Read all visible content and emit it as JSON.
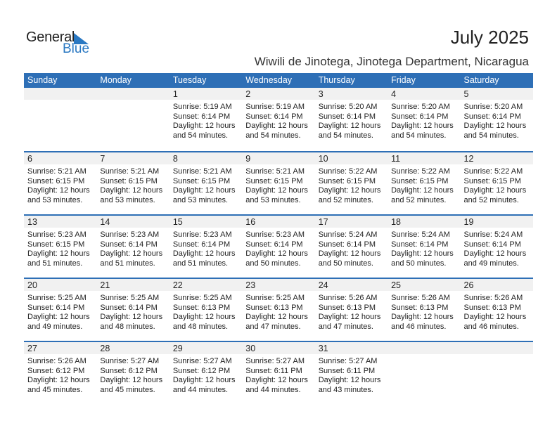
{
  "logo": {
    "text_general": "General",
    "text_blue": "Blue"
  },
  "header": {
    "title": "July 2025",
    "location": "Wiwili de Jinotega, Jinotega Department, Nicaragua"
  },
  "colors": {
    "accent": "#2e6fb6",
    "band": "#f1f1f1",
    "logo_blue": "#2a78c2"
  },
  "weekdays": [
    "Sunday",
    "Monday",
    "Tuesday",
    "Wednesday",
    "Thursday",
    "Friday",
    "Saturday"
  ],
  "weeks": [
    [
      null,
      null,
      {
        "day": "1",
        "sunrise": "Sunrise: 5:19 AM",
        "sunset": "Sunset: 6:14 PM",
        "daylight": "Daylight: 12 hours",
        "daylight2": "and 54 minutes."
      },
      {
        "day": "2",
        "sunrise": "Sunrise: 5:19 AM",
        "sunset": "Sunset: 6:14 PM",
        "daylight": "Daylight: 12 hours",
        "daylight2": "and 54 minutes."
      },
      {
        "day": "3",
        "sunrise": "Sunrise: 5:20 AM",
        "sunset": "Sunset: 6:14 PM",
        "daylight": "Daylight: 12 hours",
        "daylight2": "and 54 minutes."
      },
      {
        "day": "4",
        "sunrise": "Sunrise: 5:20 AM",
        "sunset": "Sunset: 6:14 PM",
        "daylight": "Daylight: 12 hours",
        "daylight2": "and 54 minutes."
      },
      {
        "day": "5",
        "sunrise": "Sunrise: 5:20 AM",
        "sunset": "Sunset: 6:14 PM",
        "daylight": "Daylight: 12 hours",
        "daylight2": "and 54 minutes."
      }
    ],
    [
      {
        "day": "6",
        "sunrise": "Sunrise: 5:21 AM",
        "sunset": "Sunset: 6:15 PM",
        "daylight": "Daylight: 12 hours",
        "daylight2": "and 53 minutes."
      },
      {
        "day": "7",
        "sunrise": "Sunrise: 5:21 AM",
        "sunset": "Sunset: 6:15 PM",
        "daylight": "Daylight: 12 hours",
        "daylight2": "and 53 minutes."
      },
      {
        "day": "8",
        "sunrise": "Sunrise: 5:21 AM",
        "sunset": "Sunset: 6:15 PM",
        "daylight": "Daylight: 12 hours",
        "daylight2": "and 53 minutes."
      },
      {
        "day": "9",
        "sunrise": "Sunrise: 5:21 AM",
        "sunset": "Sunset: 6:15 PM",
        "daylight": "Daylight: 12 hours",
        "daylight2": "and 53 minutes."
      },
      {
        "day": "10",
        "sunrise": "Sunrise: 5:22 AM",
        "sunset": "Sunset: 6:15 PM",
        "daylight": "Daylight: 12 hours",
        "daylight2": "and 52 minutes."
      },
      {
        "day": "11",
        "sunrise": "Sunrise: 5:22 AM",
        "sunset": "Sunset: 6:15 PM",
        "daylight": "Daylight: 12 hours",
        "daylight2": "and 52 minutes."
      },
      {
        "day": "12",
        "sunrise": "Sunrise: 5:22 AM",
        "sunset": "Sunset: 6:15 PM",
        "daylight": "Daylight: 12 hours",
        "daylight2": "and 52 minutes."
      }
    ],
    [
      {
        "day": "13",
        "sunrise": "Sunrise: 5:23 AM",
        "sunset": "Sunset: 6:15 PM",
        "daylight": "Daylight: 12 hours",
        "daylight2": "and 51 minutes."
      },
      {
        "day": "14",
        "sunrise": "Sunrise: 5:23 AM",
        "sunset": "Sunset: 6:14 PM",
        "daylight": "Daylight: 12 hours",
        "daylight2": "and 51 minutes."
      },
      {
        "day": "15",
        "sunrise": "Sunrise: 5:23 AM",
        "sunset": "Sunset: 6:14 PM",
        "daylight": "Daylight: 12 hours",
        "daylight2": "and 51 minutes."
      },
      {
        "day": "16",
        "sunrise": "Sunrise: 5:23 AM",
        "sunset": "Sunset: 6:14 PM",
        "daylight": "Daylight: 12 hours",
        "daylight2": "and 50 minutes."
      },
      {
        "day": "17",
        "sunrise": "Sunrise: 5:24 AM",
        "sunset": "Sunset: 6:14 PM",
        "daylight": "Daylight: 12 hours",
        "daylight2": "and 50 minutes."
      },
      {
        "day": "18",
        "sunrise": "Sunrise: 5:24 AM",
        "sunset": "Sunset: 6:14 PM",
        "daylight": "Daylight: 12 hours",
        "daylight2": "and 50 minutes."
      },
      {
        "day": "19",
        "sunrise": "Sunrise: 5:24 AM",
        "sunset": "Sunset: 6:14 PM",
        "daylight": "Daylight: 12 hours",
        "daylight2": "and 49 minutes."
      }
    ],
    [
      {
        "day": "20",
        "sunrise": "Sunrise: 5:25 AM",
        "sunset": "Sunset: 6:14 PM",
        "daylight": "Daylight: 12 hours",
        "daylight2": "and 49 minutes."
      },
      {
        "day": "21",
        "sunrise": "Sunrise: 5:25 AM",
        "sunset": "Sunset: 6:14 PM",
        "daylight": "Daylight: 12 hours",
        "daylight2": "and 48 minutes."
      },
      {
        "day": "22",
        "sunrise": "Sunrise: 5:25 AM",
        "sunset": "Sunset: 6:13 PM",
        "daylight": "Daylight: 12 hours",
        "daylight2": "and 48 minutes."
      },
      {
        "day": "23",
        "sunrise": "Sunrise: 5:25 AM",
        "sunset": "Sunset: 6:13 PM",
        "daylight": "Daylight: 12 hours",
        "daylight2": "and 47 minutes."
      },
      {
        "day": "24",
        "sunrise": "Sunrise: 5:26 AM",
        "sunset": "Sunset: 6:13 PM",
        "daylight": "Daylight: 12 hours",
        "daylight2": "and 47 minutes."
      },
      {
        "day": "25",
        "sunrise": "Sunrise: 5:26 AM",
        "sunset": "Sunset: 6:13 PM",
        "daylight": "Daylight: 12 hours",
        "daylight2": "and 46 minutes."
      },
      {
        "day": "26",
        "sunrise": "Sunrise: 5:26 AM",
        "sunset": "Sunset: 6:13 PM",
        "daylight": "Daylight: 12 hours",
        "daylight2": "and 46 minutes."
      }
    ],
    [
      {
        "day": "27",
        "sunrise": "Sunrise: 5:26 AM",
        "sunset": "Sunset: 6:12 PM",
        "daylight": "Daylight: 12 hours",
        "daylight2": "and 45 minutes."
      },
      {
        "day": "28",
        "sunrise": "Sunrise: 5:27 AM",
        "sunset": "Sunset: 6:12 PM",
        "daylight": "Daylight: 12 hours",
        "daylight2": "and 45 minutes."
      },
      {
        "day": "29",
        "sunrise": "Sunrise: 5:27 AM",
        "sunset": "Sunset: 6:12 PM",
        "daylight": "Daylight: 12 hours",
        "daylight2": "and 44 minutes."
      },
      {
        "day": "30",
        "sunrise": "Sunrise: 5:27 AM",
        "sunset": "Sunset: 6:11 PM",
        "daylight": "Daylight: 12 hours",
        "daylight2": "and 44 minutes."
      },
      {
        "day": "31",
        "sunrise": "Sunrise: 5:27 AM",
        "sunset": "Sunset: 6:11 PM",
        "daylight": "Daylight: 12 hours",
        "daylight2": "and 43 minutes."
      },
      null,
      null
    ]
  ]
}
